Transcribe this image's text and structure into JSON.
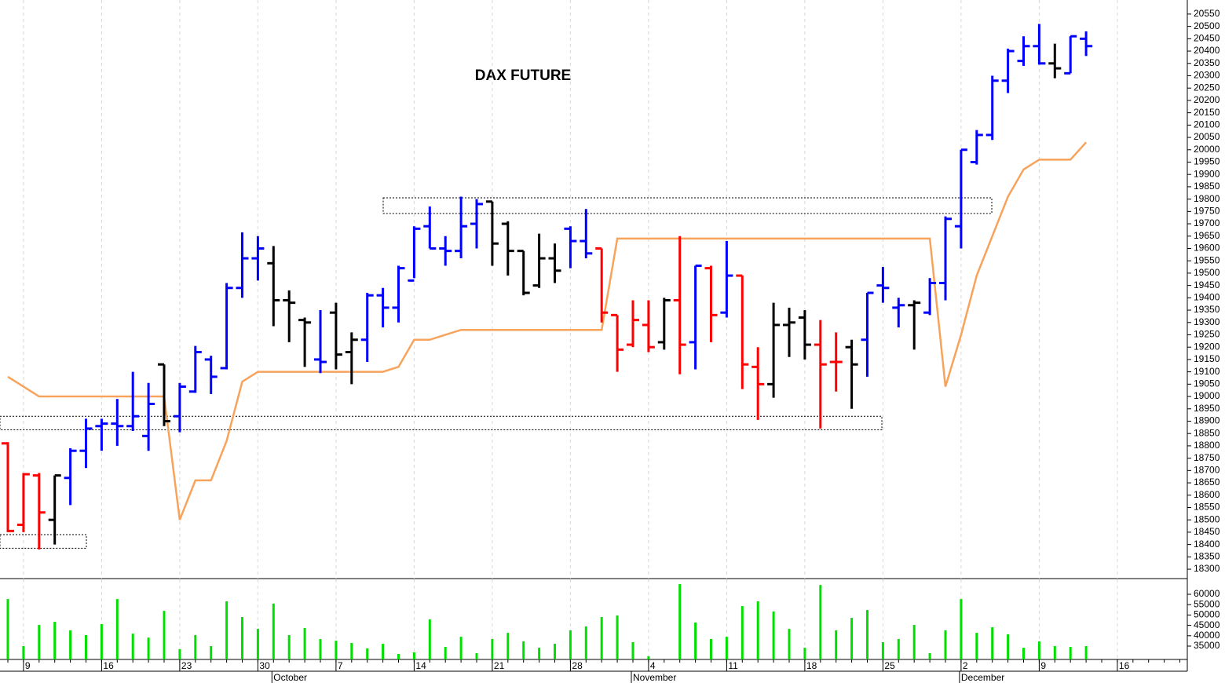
{
  "chart_data": {
    "type": "ohlc",
    "title": "DAX FUTURE",
    "categories": [
      null,
      "9",
      null,
      null,
      null,
      null,
      "16",
      null,
      null,
      null,
      null,
      "23",
      null,
      null,
      null,
      null,
      "30",
      null,
      null,
      null,
      null,
      "7",
      null,
      null,
      null,
      null,
      "14",
      null,
      null,
      null,
      null,
      "21",
      null,
      null,
      null,
      null,
      "28",
      null,
      null,
      null,
      null,
      "4",
      null,
      null,
      null,
      null,
      "11",
      null,
      null,
      null,
      null,
      "18",
      null,
      null,
      null,
      null,
      "25",
      null,
      null,
      null,
      null,
      "2",
      null,
      null,
      null,
      null,
      "9",
      null,
      null,
      null,
      null,
      "16"
    ],
    "months": [
      null,
      null,
      null,
      null,
      null,
      null,
      null,
      null,
      null,
      null,
      null,
      null,
      null,
      null,
      null,
      null,
      null,
      "October",
      null,
      null,
      null,
      null,
      null,
      null,
      null,
      null,
      null,
      null,
      null,
      null,
      null,
      null,
      null,
      null,
      null,
      null,
      null,
      null,
      null,
      null,
      "November",
      null,
      null,
      null,
      null,
      null,
      null,
      null,
      null,
      null,
      null,
      null,
      null,
      null,
      null,
      null,
      null,
      null,
      null,
      null,
      null,
      "December",
      null,
      null,
      null,
      null,
      null,
      null,
      null,
      null,
      null,
      null
    ],
    "open": [
      18810,
      18480,
      18680,
      18500,
      18670,
      18780,
      18880,
      18890,
      18880,
      18840,
      19130,
      18920,
      19020,
      19150,
      19115,
      19440,
      19560,
      19540,
      19390,
      19310,
      19150,
      19340,
      19180,
      19230,
      19410,
      19360,
      19470,
      19690,
      19600,
      19590,
      19700,
      19790,
      19700,
      19590,
      19450,
      19560,
      19680,
      19630,
      19600,
      19330,
      19210,
      19290,
      19220,
      19390,
      19220,
      19520,
      19340,
      19490,
      19120,
      19050,
      19290,
      19320,
      19210,
      19140,
      19200,
      19230,
      19450,
      19360,
      19370,
      19340,
      19460,
      19690,
      19950,
      20060,
      20280,
      20360,
      20420,
      20350,
      20310,
      20450,
      null,
      null
    ],
    "high": [
      18815,
      18690,
      18690,
      18680,
      18790,
      18910,
      18910,
      18990,
      19100,
      19055,
      19130,
      19055,
      19205,
      19165,
      19460,
      19665,
      19650,
      19610,
      19430,
      19320,
      19350,
      19380,
      19260,
      19420,
      19440,
      19530,
      19690,
      19770,
      19650,
      19810,
      19800,
      19790,
      19710,
      19590,
      19660,
      19620,
      19690,
      19760,
      19600,
      19330,
      19390,
      19390,
      19400,
      19650,
      19530,
      19530,
      19630,
      19490,
      19200,
      19380,
      19360,
      19350,
      19310,
      19260,
      19230,
      19420,
      19525,
      19400,
      19390,
      19480,
      19730,
      20000,
      20080,
      20300,
      20410,
      20460,
      20510,
      20430,
      20460,
      20480,
      null,
      null
    ],
    "low": [
      18450,
      18450,
      18380,
      18400,
      18560,
      18710,
      18780,
      18800,
      18860,
      18780,
      18880,
      18855,
      19015,
      19010,
      19110,
      19400,
      19470,
      19285,
      19220,
      19120,
      19095,
      19110,
      19050,
      19140,
      19280,
      19300,
      19480,
      19600,
      19530,
      19560,
      19600,
      19530,
      19490,
      19410,
      19440,
      19460,
      19520,
      19560,
      19300,
      19100,
      19200,
      19180,
      19190,
      19090,
      19110,
      19220,
      19320,
      19030,
      18905,
      18995,
      19160,
      19150,
      18870,
      19020,
      18950,
      19080,
      19380,
      19280,
      19190,
      19330,
      19390,
      19600,
      19940,
      20040,
      20230,
      20340,
      20345,
      20290,
      20310,
      20380,
      null,
      null
    ],
    "close": [
      18455,
      18685,
      18530,
      18680,
      18780,
      18870,
      18890,
      18880,
      18920,
      18970,
      18900,
      19040,
      19180,
      19080,
      19440,
      19560,
      19600,
      19390,
      19380,
      19300,
      19140,
      19170,
      19230,
      19410,
      19360,
      19520,
      19680,
      19600,
      19590,
      19690,
      19780,
      19620,
      19590,
      19420,
      19560,
      19510,
      19630,
      19580,
      19340,
      19190,
      19310,
      19200,
      19390,
      19210,
      19530,
      19330,
      19490,
      19130,
      19050,
      19290,
      19300,
      19210,
      19130,
      19140,
      19130,
      19420,
      19440,
      19370,
      19380,
      19460,
      19720,
      20000,
      20060,
      20280,
      20400,
      20420,
      20350,
      20330,
      20460,
      20420,
      null,
      null
    ],
    "bar_colors": [
      "#ff0000",
      "#ff0000",
      "#ff0000",
      "#000000",
      "#0000ff",
      "#0000ff",
      "#0000ff",
      "#0000ff",
      "#0000ff",
      "#0000ff",
      "#000000",
      "#0000ff",
      "#0000ff",
      "#0000ff",
      "#0000ff",
      "#0000ff",
      "#0000ff",
      "#000000",
      "#000000",
      "#000000",
      "#0000ff",
      "#000000",
      "#000000",
      "#0000ff",
      "#0000ff",
      "#0000ff",
      "#0000ff",
      "#0000ff",
      "#0000ff",
      "#0000ff",
      "#0000ff",
      "#000000",
      "#000000",
      "#000000",
      "#000000",
      "#000000",
      "#0000ff",
      "#0000ff",
      "#ff0000",
      "#ff0000",
      "#ff0000",
      "#ff0000",
      "#000000",
      "#ff0000",
      "#0000ff",
      "#ff0000",
      "#0000ff",
      "#ff0000",
      "#ff0000",
      "#000000",
      "#000000",
      "#000000",
      "#ff0000",
      "#ff0000",
      "#000000",
      "#0000ff",
      "#0000ff",
      "#0000ff",
      "#000000",
      "#0000ff",
      "#0000ff",
      "#0000ff",
      "#0000ff",
      "#0000ff",
      "#0000ff",
      "#0000ff",
      "#0000ff",
      "#000000",
      "#0000ff",
      "#0000ff",
      null,
      null
    ],
    "line": {
      "color": "#f7a35c",
      "values": [
        19080,
        19040,
        19000,
        19000,
        19000,
        19000,
        19000,
        19000,
        19000,
        19000,
        19000,
        18500,
        18660,
        18660,
        18820,
        19060,
        19100,
        19100,
        19100,
        19100,
        19100,
        19100,
        19100,
        19100,
        19100,
        19120,
        19230,
        19230,
        19250,
        19270,
        19270,
        19270,
        19270,
        19270,
        19270,
        19270,
        19270,
        19270,
        19270,
        19640,
        19640,
        19640,
        19640,
        19640,
        19640,
        19640,
        19640,
        19640,
        19640,
        19640,
        19640,
        19640,
        19640,
        19640,
        19640,
        19640,
        19640,
        19640,
        19640,
        19640,
        19040,
        19250,
        19490,
        19650,
        19810,
        19920,
        19960,
        19960,
        19960,
        20030,
        null,
        null
      ]
    },
    "zones": [
      {
        "low": 18385,
        "high": 18440
      },
      {
        "low": 18865,
        "high": 18920
      },
      {
        "low": 19742,
        "high": 19805
      }
    ],
    "ylim": [
      18262,
      20607
    ],
    "yticks": [
      18300,
      18350,
      18400,
      18450,
      18500,
      18550,
      18600,
      18650,
      18700,
      18750,
      18800,
      18850,
      18900,
      18950,
      19000,
      19050,
      19100,
      19150,
      19200,
      19250,
      19300,
      19350,
      19400,
      19450,
      19500,
      19550,
      19600,
      19650,
      19700,
      19750,
      19800,
      19850,
      19900,
      19950,
      20000,
      20050,
      20100,
      20150,
      20200,
      20250,
      20300,
      20350,
      20400,
      20450,
      20500,
      20550
    ],
    "xgrid": true,
    "volume": {
      "color": "#00e000",
      "values": [
        57700,
        35000,
        45200,
        46700,
        42600,
        40300,
        45600,
        57700,
        41000,
        39100,
        52000,
        33500,
        40300,
        35000,
        56600,
        49000,
        43300,
        55500,
        40300,
        43700,
        38400,
        37600,
        36500,
        33900,
        36100,
        31200,
        32000,
        47900,
        34600,
        39500,
        31600,
        38400,
        41400,
        37300,
        34200,
        36100,
        42600,
        44500,
        49000,
        49800,
        36900,
        30100,
        null,
        64900,
        46400,
        38400,
        39500,
        54300,
        56600,
        51700,
        43300,
        34200,
        64500,
        42600,
        48600,
        52400,
        36900,
        38400,
        45200,
        31600,
        42600,
        57700,
        41400,
        44100,
        40700,
        34200,
        37300,
        35000,
        34600,
        35000,
        null,
        null
      ],
      "ylim": [
        28560,
        67200
      ],
      "yticks": [
        35000,
        40000,
        45000,
        50000,
        55000,
        60000
      ]
    }
  }
}
